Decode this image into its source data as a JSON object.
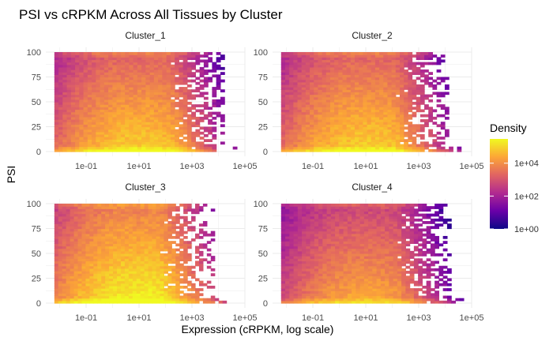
{
  "chart_data": {
    "type": "heatmap",
    "title": "PSI vs cRPKM Across All Tissues by Cluster",
    "xlabel": "Expression (cRPKM, log scale)",
    "ylabel": "PSI",
    "x_scale": "log10",
    "xlim": [
      0.003,
      100000
    ],
    "ylim": [
      0,
      100
    ],
    "x_ticks": [
      0.1,
      10,
      1000,
      100000
    ],
    "x_tick_labels": [
      "1e-01",
      "1e+01",
      "1e+03",
      "1e+05"
    ],
    "y_ticks": [
      0,
      25,
      50,
      75,
      100
    ],
    "y_tick_labels": [
      "0",
      "25",
      "50",
      "75",
      "100"
    ],
    "grid": true,
    "legend": {
      "title": "Density",
      "placement": "right",
      "scale": "log10",
      "range": [
        1,
        300000
      ],
      "ticks": [
        1,
        100,
        10000
      ],
      "tick_labels": [
        "1e+00",
        "1e+02",
        "1e+04"
      ],
      "colormap": "plasma",
      "colors": [
        "#0d0887",
        "#6a00a8",
        "#b12a90",
        "#e16462",
        "#fca636",
        "#f0f921"
      ]
    },
    "panels": [
      {
        "name": "Cluster_1",
        "x_max": 50000,
        "peak_x": 10,
        "peak_density": 100000,
        "bottom_band_max": 30000,
        "top_band_max": 1000
      },
      {
        "name": "Cluster_2",
        "x_max": 40000,
        "peak_x": 10,
        "peak_density": 100000,
        "bottom_band_max": 25000,
        "top_band_max": 1500
      },
      {
        "name": "Cluster_3",
        "x_max": 20000,
        "peak_x": 10,
        "peak_density": 300000,
        "bottom_band_max": 30000,
        "top_band_max": 2000
      },
      {
        "name": "Cluster_4",
        "x_max": 50000,
        "peak_x": 10,
        "peak_density": 30000,
        "bottom_band_max": 10000,
        "top_band_max": 3000
      }
    ]
  }
}
